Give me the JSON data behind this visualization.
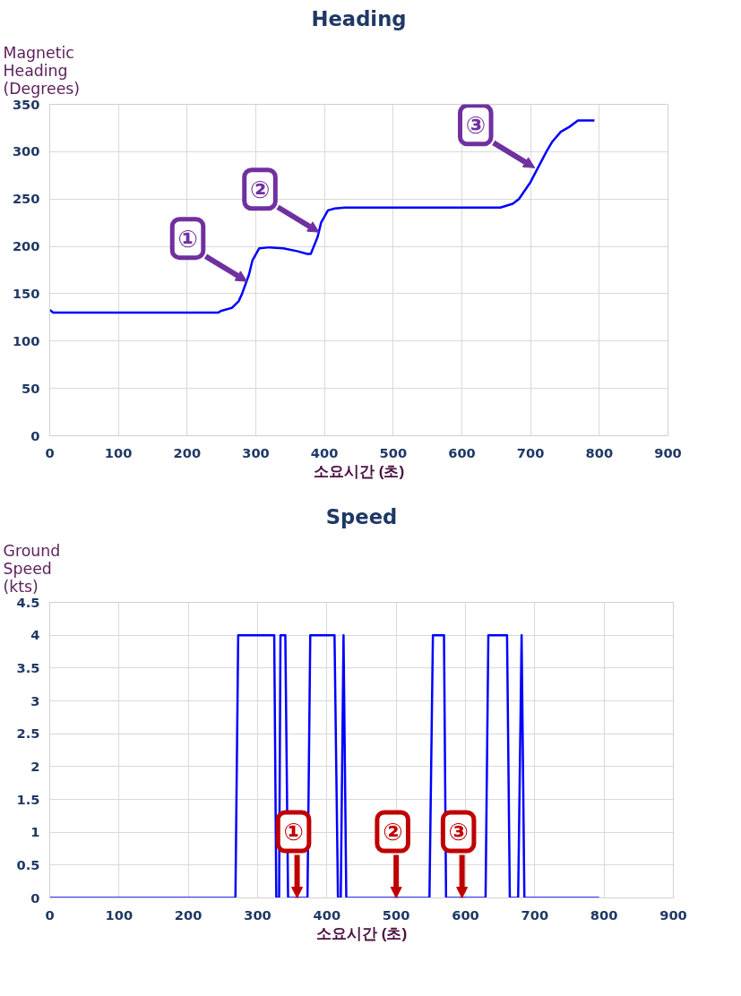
{
  "chart_data": [
    {
      "type": "line",
      "title": "Heading",
      "xlabel": "소요시간 (초)",
      "ylabel": "Magnetic\nHeading\n(Degrees)",
      "x": [
        0,
        5,
        245,
        250,
        265,
        275,
        280,
        290,
        295,
        305,
        320,
        340,
        360,
        375,
        380,
        390,
        395,
        405,
        415,
        430,
        656,
        674,
        683,
        700,
        710,
        723,
        731,
        744,
        756,
        769,
        793
      ],
      "series": [
        {
          "color": "#0000ff",
          "values": [
            133,
            130,
            130,
            132,
            135,
            142,
            150,
            170,
            185,
            198,
            199,
            198,
            195,
            192,
            192,
            210,
            225,
            238,
            240,
            241,
            241,
            245,
            250,
            268,
            282,
            300,
            310,
            321,
            326,
            333,
            333
          ]
        }
      ],
      "xlim": [
        0,
        900
      ],
      "ylim": [
        0,
        350
      ],
      "xticks": [
        0,
        100,
        200,
        300,
        400,
        500,
        600,
        700,
        800,
        900
      ],
      "yticks": [
        0,
        50,
        100,
        150,
        200,
        250,
        300,
        350
      ],
      "grid": true,
      "annotations": [
        {
          "text": "①",
          "x": 287,
          "y": 163
        },
        {
          "text": "②",
          "x": 392,
          "y": 215
        },
        {
          "text": "③",
          "x": 706,
          "y": 283
        }
      ]
    },
    {
      "type": "line",
      "title": "Speed",
      "xlabel": "소요시간 (초)",
      "ylabel": "Ground\nSpeed\n(kts)",
      "x": [
        0,
        268,
        272,
        324,
        327,
        331,
        333,
        340,
        344,
        372,
        376,
        411,
        416,
        420,
        424,
        428,
        548,
        553,
        569,
        572,
        629,
        633,
        660,
        664,
        676,
        681,
        685,
        793
      ],
      "series": [
        {
          "color": "#0000ff",
          "values": [
            0,
            0,
            4,
            4,
            0,
            0,
            4,
            4,
            0,
            0,
            4,
            4,
            0,
            0,
            4,
            0,
            0,
            4,
            4,
            0,
            0,
            4,
            4,
            0,
            0,
            4,
            0,
            0
          ]
        }
      ],
      "xlim": [
        0,
        900
      ],
      "ylim": [
        0,
        4.5
      ],
      "xticks": [
        0,
        100,
        200,
        300,
        400,
        500,
        600,
        700,
        800,
        900
      ],
      "yticks": [
        0,
        0.5,
        1,
        1.5,
        2,
        2.5,
        3,
        3.5,
        4,
        4.5
      ],
      "grid": true,
      "annotations": [
        {
          "text": "①",
          "x": 357,
          "y": 0
        },
        {
          "text": "②",
          "x": 500,
          "y": 0
        },
        {
          "text": "③",
          "x": 595,
          "y": 0
        }
      ]
    }
  ]
}
